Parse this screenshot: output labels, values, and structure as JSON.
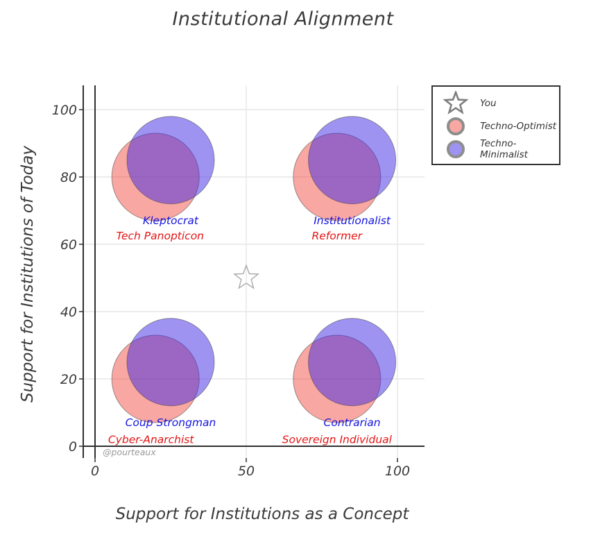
{
  "title": "Institutional Alignment",
  "watermark": "@pourteaux",
  "legend": {
    "items": [
      {
        "id": "you",
        "label": "You",
        "marker": "star"
      },
      {
        "id": "techno-optimist",
        "label": "Techno-Optimist",
        "marker": "circle"
      },
      {
        "id": "techno-minimalist",
        "label": "Techno-Minimalist",
        "marker": "circle"
      }
    ]
  },
  "colors": {
    "optimist_fill": "rgba(242,60,48,0.45)",
    "minimalist_fill": "rgba(62,40,228,0.50)",
    "marker_edge": "rgba(70,70,70,0.55)",
    "label_blue": "#1414e0",
    "label_red": "#e41414",
    "grid": "#e6e6e6",
    "axis": "#2f2f2f",
    "text": "#3a3a3a",
    "star": "#a9a9a9",
    "legend_star": "#7f7f7f",
    "watermark": "#9a9a9a"
  },
  "chart_data": {
    "type": "scatter",
    "title": "Institutional Alignment",
    "xlabel": "Support for Institutions as a Concept",
    "ylabel": "Support for Institutions of Today",
    "xlim": [
      -4,
      109
    ],
    "ylim": [
      -4,
      107
    ],
    "xticks": [
      0,
      50,
      100
    ],
    "yticks": [
      0,
      20,
      40,
      60,
      80,
      100
    ],
    "grid": true,
    "legend_position": "top-right-outside",
    "marker_px_radius": 63,
    "series": [
      {
        "name": "You",
        "marker": "star",
        "points": [
          {
            "x": 50,
            "y": 50
          }
        ]
      },
      {
        "name": "Techno-Optimist",
        "marker": "circle",
        "fill_key": "optimist_fill",
        "points": [
          {
            "x": 20,
            "y": 80,
            "label": "Tech Panopticon"
          },
          {
            "x": 80,
            "y": 80,
            "label": "Reformer"
          },
          {
            "x": 20,
            "y": 20,
            "label": "Cyber-Anarchist"
          },
          {
            "x": 80,
            "y": 20,
            "label": "Sovereign Individual"
          }
        ]
      },
      {
        "name": "Techno-Minimalist",
        "marker": "circle",
        "fill_key": "minimalist_fill",
        "points": [
          {
            "x": 25,
            "y": 85,
            "label": "Kleptocrat"
          },
          {
            "x": 85,
            "y": 85,
            "label": "Institutionalist"
          },
          {
            "x": 25,
            "y": 25,
            "label": "Coup Strongman"
          },
          {
            "x": 85,
            "y": 25,
            "label": "Contrarian"
          }
        ]
      }
    ],
    "annotations": [
      {
        "text": "Kleptocrat",
        "color_key": "label_blue",
        "x": 25,
        "y": 67
      },
      {
        "text": "Tech Panopticon",
        "color_key": "label_red",
        "x": 21.5,
        "y": 62.5
      },
      {
        "text": "Institutionalist",
        "color_key": "label_blue",
        "x": 85,
        "y": 67
      },
      {
        "text": "Reformer",
        "color_key": "label_red",
        "x": 80,
        "y": 62.5
      },
      {
        "text": "Coup Strongman",
        "color_key": "label_blue",
        "x": 25,
        "y": 7
      },
      {
        "text": "Cyber-Anarchist",
        "color_key": "label_red",
        "x": 18.5,
        "y": 2
      },
      {
        "text": "Contrarian",
        "color_key": "label_blue",
        "x": 85,
        "y": 7
      },
      {
        "text": "Sovereign Individual",
        "color_key": "label_red",
        "x": 80,
        "y": 2
      }
    ]
  }
}
